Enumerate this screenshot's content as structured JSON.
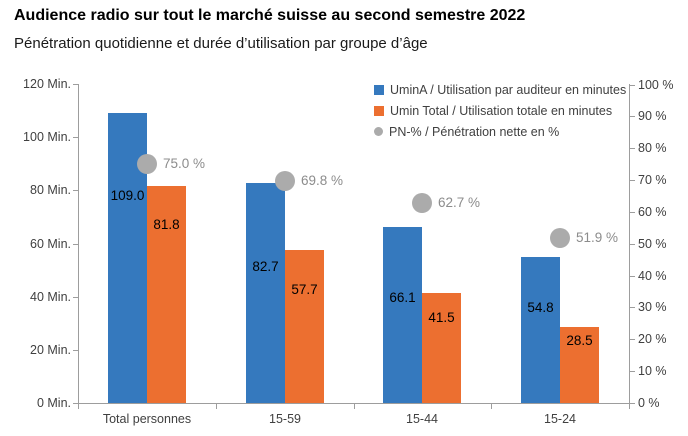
{
  "chart_data": {
    "type": "bar",
    "title": "Audience radio sur tout le marché suisse au second semestre 2022",
    "subtitle": "Pénétration quotidienne et durée d’utilisation par groupe d’âge",
    "categories": [
      "Total personnes",
      "15-59",
      "15-44",
      "15-24"
    ],
    "series": [
      {
        "name": "UminA / Utilisation par auditeur en minutes",
        "kind": "bar",
        "axis": "left",
        "color": "#3579BE",
        "values": [
          109.0,
          82.7,
          66.1,
          54.8
        ],
        "labels": [
          "109.0",
          "82.7",
          "66.1",
          "54.8"
        ]
      },
      {
        "name": "Umin Total / Utilisation totale en minutes",
        "kind": "bar",
        "axis": "left",
        "color": "#EC6F30",
        "values": [
          81.8,
          57.7,
          41.5,
          28.5
        ],
        "labels": [
          "81.8",
          "57.7",
          "41.5",
          "28.5"
        ]
      },
      {
        "name": "PN-% / Pénétration nette en %",
        "kind": "point",
        "axis": "right",
        "color": "#ABABAB",
        "values": [
          75.0,
          69.8,
          62.7,
          51.9
        ],
        "labels": [
          "75.0 %",
          "69.8 %",
          "62.7 %",
          "51.9 %"
        ]
      }
    ],
    "left_axis": {
      "min": 0,
      "max": 120,
      "step": 20,
      "unit": "Min.",
      "tick_labels": [
        "0 Min.",
        "20 Min.",
        "40 Min.",
        "60 Min.",
        "80 Min.",
        "100 Min.",
        "120 Min."
      ]
    },
    "right_axis": {
      "min": 0,
      "max": 100,
      "step": 10,
      "unit": "%",
      "tick_labels": [
        "0 %",
        "10 %",
        "20 %",
        "30 %",
        "40 %",
        "50 %",
        "60 %",
        "70 %",
        "80 %",
        "90 %",
        "100 %"
      ]
    },
    "legend_position": "top-right",
    "grid": false,
    "colors": {
      "bar_blue": "#3579BE",
      "bar_orange": "#EC6F30",
      "dot_gray": "#ABABAB",
      "axis_line": "#9d9d9d",
      "tick_text": "#404040",
      "value_label": "#000000",
      "pct_label": "#8c8c8c",
      "legend_text": "#404040"
    }
  }
}
